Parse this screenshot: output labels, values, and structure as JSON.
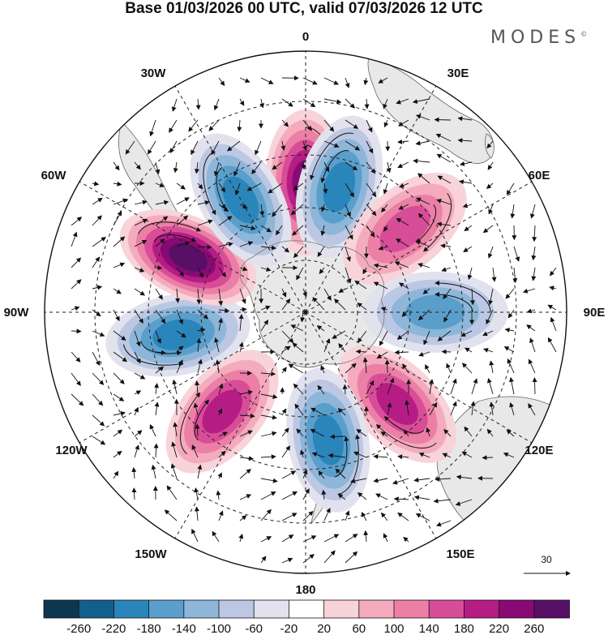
{
  "title": "Base 01/03/2026 00 UTC, valid 07/03/2026 12 UTC",
  "brand": "MODES",
  "brand_mark": "©",
  "map": {
    "projection": "South polar stereographic",
    "longitude_labels": {
      "top": "0",
      "top_right": "30E",
      "right_upper": "60E",
      "right": "90E",
      "right_lower": "120E",
      "bottom_right": "150E",
      "bottom": "180",
      "bottom_left": "150W",
      "left_lower": "120W",
      "left": "90W",
      "left_upper": "60W",
      "top_left": "30W"
    },
    "reference_vector_label": "30",
    "anomaly_centers": [
      {
        "sign": "positive",
        "value": 240,
        "sector": "0"
      },
      {
        "sign": "negative",
        "value": -200,
        "sector": "15E"
      },
      {
        "sign": "positive",
        "value": 140,
        "sector": "50E"
      },
      {
        "sign": "negative",
        "value": -160,
        "sector": "90E"
      },
      {
        "sign": "positive",
        "value": 180,
        "sector": "135E"
      },
      {
        "sign": "negative",
        "value": -200,
        "sector": "170E"
      },
      {
        "sign": "positive",
        "value": 200,
        "sector": "140W"
      },
      {
        "sign": "negative",
        "value": -200,
        "sector": "100W"
      },
      {
        "sign": "positive",
        "value": 260,
        "sector": "65W"
      },
      {
        "sign": "negative",
        "value": -220,
        "sector": "30W"
      }
    ]
  },
  "colorbar": {
    "ticks": [
      "-260",
      "-220",
      "-180",
      "-140",
      "-100",
      "-60",
      "-20",
      "20",
      "60",
      "100",
      "140",
      "180",
      "220",
      "260"
    ],
    "colors": [
      "#0d3650",
      "#125f8c",
      "#2a85bb",
      "#5a9fcc",
      "#8db6d9",
      "#bcc8e3",
      "#e2e2ef",
      "#ffffff",
      "#f8d3d9",
      "#f3abbd",
      "#ec7fa6",
      "#d84d98",
      "#b51d84",
      "#880a74",
      "#571065"
    ]
  },
  "colors": {
    "land": "#e8e8e8",
    "coast": "#666666",
    "grid": "#222222"
  }
}
